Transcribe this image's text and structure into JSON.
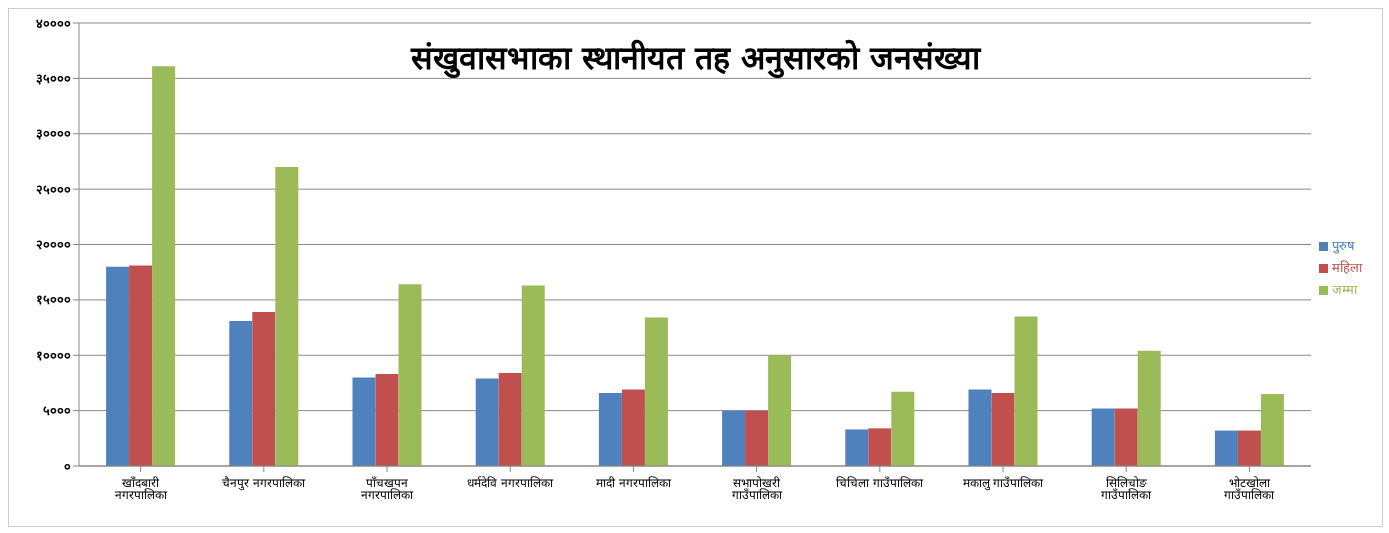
{
  "chart_data": {
    "type": "bar",
    "title": "संखुवासभाका स्थानीयत तह अनुसारको जनसंख्या",
    "categories": [
      "खाँदबारी नगरपालिका",
      "चैनपुर नगरपालिका",
      "पाँचखपन नगरपालिका",
      "धर्मदेवि नगरपालिका",
      "मादी नगरपालिका",
      "सभापोखरी गाउँपालिका",
      "चिचिला गाउँपालिका",
      "मकालु गाउँपालिका",
      "सिलिचोङ गाउँपालिका",
      "भोटखोला गाउँपालिका"
    ],
    "series": [
      {
        "name": "पुरुष",
        "color": "#4f81bd",
        "values": [
          18000,
          13100,
          8000,
          7900,
          6600,
          5000,
          3300,
          6900,
          5200,
          3200
        ]
      },
      {
        "name": "महिला",
        "color": "#c0504d",
        "values": [
          18100,
          13900,
          8300,
          8400,
          6900,
          5000,
          3400,
          6600,
          5200,
          3200
        ]
      },
      {
        "name": "जम्मा",
        "color": "#9bbb59",
        "values": [
          36100,
          27000,
          16400,
          16300,
          13400,
          10000,
          6700,
          13500,
          10400,
          6500
        ]
      }
    ],
    "ylim": [
      0,
      40000
    ],
    "yticks": [
      {
        "value": 0,
        "label": "०"
      },
      {
        "value": 5000,
        "label": "५०००"
      },
      {
        "value": 10000,
        "label": "१००००"
      },
      {
        "value": 15000,
        "label": "१५०००"
      },
      {
        "value": 20000,
        "label": "२००००"
      },
      {
        "value": 25000,
        "label": "२५०००"
      },
      {
        "value": 30000,
        "label": "३००००"
      },
      {
        "value": 35000,
        "label": "३५०००"
      },
      {
        "value": 40000,
        "label": "४००००"
      }
    ],
    "grid": "y",
    "legend": "right"
  }
}
